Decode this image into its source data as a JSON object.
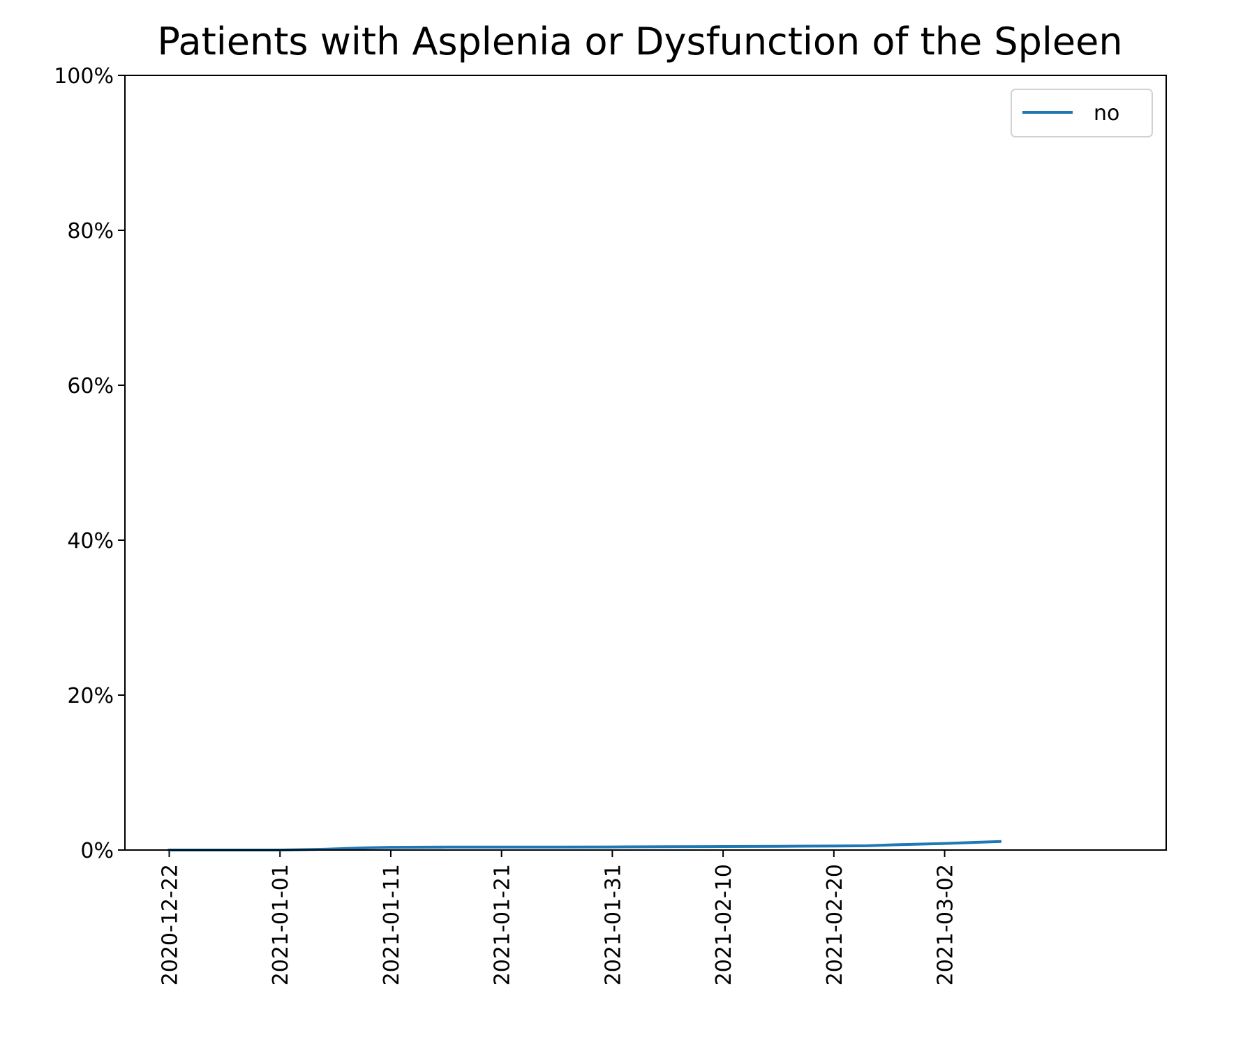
{
  "chart_data": {
    "type": "line",
    "title": "Patients with Asplenia or Dysfunction of the Spleen",
    "xlabel": "",
    "ylabel": "",
    "x_ticks": [
      "2020-12-22",
      "2021-01-01",
      "2021-01-11",
      "2021-01-21",
      "2021-01-31",
      "2021-02-10",
      "2021-02-20",
      "2021-03-02"
    ],
    "x_range": [
      "2020-12-18",
      "2021-03-22"
    ],
    "y_ticks": [
      "0%",
      "20%",
      "40%",
      "60%",
      "80%",
      "100%"
    ],
    "ylim": [
      0,
      100
    ],
    "grid": false,
    "legend_position": "top-right",
    "series": [
      {
        "name": "no",
        "color": "#1f77b4",
        "x": [
          "2020-12-22",
          "2020-12-27",
          "2021-01-01",
          "2021-01-05",
          "2021-01-09",
          "2021-01-11",
          "2021-01-16",
          "2021-01-21",
          "2021-01-26",
          "2021-01-31",
          "2021-02-05",
          "2021-02-10",
          "2021-02-15",
          "2021-02-20",
          "2021-02-23",
          "2021-02-26",
          "2021-03-02",
          "2021-03-05",
          "2021-03-07"
        ],
        "values": [
          0.0,
          0.0,
          0.0,
          0.1,
          0.3,
          0.35,
          0.38,
          0.38,
          0.38,
          0.4,
          0.42,
          0.45,
          0.48,
          0.52,
          0.55,
          0.7,
          0.85,
          1.0,
          1.1
        ]
      }
    ]
  }
}
